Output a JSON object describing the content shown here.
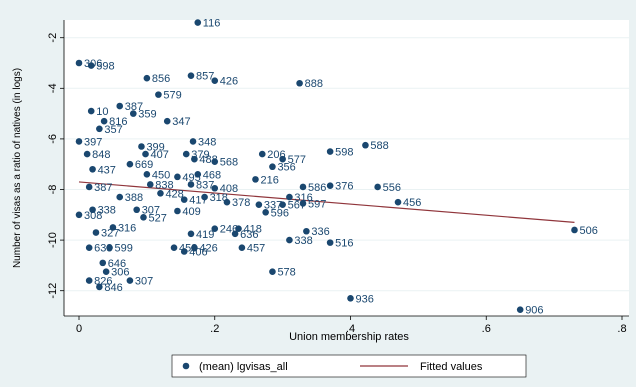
{
  "chart_data": {
    "type": "scatter",
    "xlabel": "Union membership rates",
    "ylabel": "Number of visas as a ratio of natives (in logs)",
    "xlim": [
      0,
      0.8
    ],
    "ylim": [
      -13,
      -1.3
    ],
    "x_ticks": [
      0,
      0.2,
      0.4,
      0.6,
      0.8
    ],
    "x_tick_labels": [
      "0",
      ".2",
      ".4",
      ".6",
      ".8"
    ],
    "y_ticks": [
      -12,
      -10,
      -8,
      -6,
      -4,
      -2
    ],
    "y_tick_labels": [
      "-12",
      "-10",
      "-8",
      "-6",
      "-4",
      "-2"
    ],
    "grid": "horizontal",
    "legend_position": "bottom",
    "colors": {
      "points": "#1a476f",
      "fit": "#90353b",
      "background": "#eaf2f3",
      "plot": "#ffffff",
      "grid": "#eaf2f3"
    },
    "series": [
      {
        "name": "(mean) lgvisas_all",
        "points": [
          {
            "x": 0.175,
            "y": -1.4,
            "label": "116"
          },
          {
            "x": 0.0,
            "y": -3.0,
            "label": "306"
          },
          {
            "x": 0.018,
            "y": -3.1,
            "label": "598"
          },
          {
            "x": 0.1,
            "y": -3.6,
            "label": "856"
          },
          {
            "x": 0.165,
            "y": -3.5,
            "label": "857"
          },
          {
            "x": 0.2,
            "y": -3.7,
            "label": "426"
          },
          {
            "x": 0.325,
            "y": -3.8,
            "label": "888"
          },
          {
            "x": 0.117,
            "y": -4.25,
            "label": "579"
          },
          {
            "x": 0.018,
            "y": -4.9,
            "label": "10"
          },
          {
            "x": 0.06,
            "y": -4.7,
            "label": "387"
          },
          {
            "x": 0.08,
            "y": -5.0,
            "label": "359"
          },
          {
            "x": 0.037,
            "y": -5.3,
            "label": "816"
          },
          {
            "x": 0.13,
            "y": -5.3,
            "label": "347"
          },
          {
            "x": 0.03,
            "y": -5.6,
            "label": "357"
          },
          {
            "x": 0.0,
            "y": -6.1,
            "label": "397"
          },
          {
            "x": 0.168,
            "y": -6.1,
            "label": "348"
          },
          {
            "x": 0.012,
            "y": -6.6,
            "label": "848"
          },
          {
            "x": 0.092,
            "y": -6.3,
            "label": "399"
          },
          {
            "x": 0.098,
            "y": -6.6,
            "label": "407"
          },
          {
            "x": 0.158,
            "y": -6.6,
            "label": "379"
          },
          {
            "x": 0.17,
            "y": -6.8,
            "label": "488"
          },
          {
            "x": 0.2,
            "y": -6.9,
            "label": "568"
          },
          {
            "x": 0.27,
            "y": -6.6,
            "label": "206"
          },
          {
            "x": 0.3,
            "y": -6.8,
            "label": "577"
          },
          {
            "x": 0.285,
            "y": -7.1,
            "label": "356"
          },
          {
            "x": 0.37,
            "y": -6.5,
            "label": "598"
          },
          {
            "x": 0.422,
            "y": -6.25,
            "label": "588"
          },
          {
            "x": 0.075,
            "y": -7.0,
            "label": "669"
          },
          {
            "x": 0.02,
            "y": -7.2,
            "label": "437"
          },
          {
            "x": 0.1,
            "y": -7.4,
            "label": "450"
          },
          {
            "x": 0.175,
            "y": -7.4,
            "label": "468"
          },
          {
            "x": 0.165,
            "y": -7.8,
            "label": "837"
          },
          {
            "x": 0.145,
            "y": -7.5,
            "label": "495"
          },
          {
            "x": 0.26,
            "y": -7.6,
            "label": "216"
          },
          {
            "x": 0.2,
            "y": -7.95,
            "label": "408"
          },
          {
            "x": 0.33,
            "y": -7.9,
            "label": "586"
          },
          {
            "x": 0.37,
            "y": -7.85,
            "label": "376"
          },
          {
            "x": 0.44,
            "y": -7.9,
            "label": "556"
          },
          {
            "x": 0.31,
            "y": -8.3,
            "label": "316"
          },
          {
            "x": 0.105,
            "y": -7.8,
            "label": "838"
          },
          {
            "x": 0.015,
            "y": -7.9,
            "label": "387"
          },
          {
            "x": 0.06,
            "y": -8.3,
            "label": "388"
          },
          {
            "x": 0.12,
            "y": -8.15,
            "label": "428"
          },
          {
            "x": 0.155,
            "y": -8.4,
            "label": "417"
          },
          {
            "x": 0.185,
            "y": -8.3,
            "label": "318"
          },
          {
            "x": 0.218,
            "y": -8.5,
            "label": "378"
          },
          {
            "x": 0.265,
            "y": -8.6,
            "label": "337"
          },
          {
            "x": 0.3,
            "y": -8.6,
            "label": "567"
          },
          {
            "x": 0.33,
            "y": -8.55,
            "label": "597"
          },
          {
            "x": 0.47,
            "y": -8.5,
            "label": "456"
          },
          {
            "x": 0.02,
            "y": -8.8,
            "label": "338"
          },
          {
            "x": 0.085,
            "y": -8.8,
            "label": "307"
          },
          {
            "x": 0.145,
            "y": -8.85,
            "label": "409"
          },
          {
            "x": 0.275,
            "y": -8.9,
            "label": "596"
          },
          {
            "x": 0.095,
            "y": -9.1,
            "label": "527"
          },
          {
            "x": 0.0,
            "y": -9.0,
            "label": "308"
          },
          {
            "x": 0.05,
            "y": -9.5,
            "label": "316"
          },
          {
            "x": 0.025,
            "y": -9.7,
            "label": "327"
          },
          {
            "x": 0.165,
            "y": -9.75,
            "label": "419"
          },
          {
            "x": 0.2,
            "y": -9.55,
            "label": "246"
          },
          {
            "x": 0.235,
            "y": -9.55,
            "label": "418"
          },
          {
            "x": 0.23,
            "y": -9.75,
            "label": "636"
          },
          {
            "x": 0.335,
            "y": -9.65,
            "label": "336"
          },
          {
            "x": 0.31,
            "y": -10.0,
            "label": "338"
          },
          {
            "x": 0.37,
            "y": -10.1,
            "label": "516"
          },
          {
            "x": 0.015,
            "y": -10.3,
            "label": "638"
          },
          {
            "x": 0.045,
            "y": -10.3,
            "label": "599"
          },
          {
            "x": 0.14,
            "y": -10.3,
            "label": "458"
          },
          {
            "x": 0.17,
            "y": -10.3,
            "label": "426"
          },
          {
            "x": 0.155,
            "y": -10.45,
            "label": "406"
          },
          {
            "x": 0.24,
            "y": -10.3,
            "label": "457"
          },
          {
            "x": 0.035,
            "y": -10.9,
            "label": "646"
          },
          {
            "x": 0.04,
            "y": -11.25,
            "label": "306"
          },
          {
            "x": 0.285,
            "y": -11.25,
            "label": "578"
          },
          {
            "x": 0.015,
            "y": -11.6,
            "label": "826"
          },
          {
            "x": 0.075,
            "y": -11.6,
            "label": "307"
          },
          {
            "x": 0.03,
            "y": -11.85,
            "label": "846"
          },
          {
            "x": 0.4,
            "y": -12.3,
            "label": "936"
          },
          {
            "x": 0.65,
            "y": -12.75,
            "label": "906"
          },
          {
            "x": 0.73,
            "y": -9.6,
            "label": "506"
          }
        ]
      },
      {
        "name": "Fitted values",
        "line": [
          {
            "x": 0.0,
            "y": -7.7
          },
          {
            "x": 0.73,
            "y": -9.3
          }
        ]
      }
    ]
  }
}
